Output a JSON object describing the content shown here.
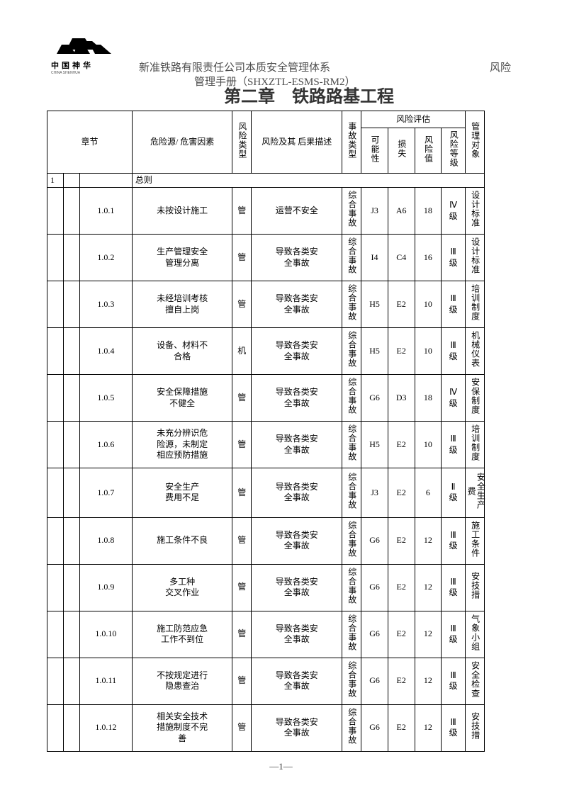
{
  "header": {
    "logo_text": "中国神华",
    "logo_sub": "CHINA SHENHUA",
    "title_line1_left": "新准铁路有限责任公司本质安全管理体系",
    "title_line1_right": "风险",
    "title_line2": "管理手册（SHXZTL-ESMS-RM2）",
    "chapter": "第二章　铁路路基工程"
  },
  "table": {
    "head": {
      "chapter": "章节",
      "hazard": "危险源/\n危害因素",
      "risk_type": "风险类型",
      "risk_desc": "风险及其\n后果描述",
      "accident_type": "事故类型",
      "risk_eval": "风险评估",
      "possibility": "可能性",
      "loss": "损失",
      "risk_value": "风险值",
      "risk_grade": "风险等级",
      "mgmt_obj": "管理对象"
    },
    "section": {
      "num": "1",
      "title": "总则"
    },
    "rows": [
      {
        "ch": "1.0.1",
        "hazard": "未按设计施工",
        "rtype": "管",
        "desc": "运营不安全",
        "atype": "综合事故",
        "poss": "J3",
        "loss": "A6",
        "val": "18",
        "grade": "Ⅳ级",
        "obj": "设计标准"
      },
      {
        "ch": "1.0.2",
        "hazard": "生产管理安全\n管理分离",
        "rtype": "管",
        "desc": "导致各类安\n全事故",
        "atype": "综合事故",
        "poss": "I4",
        "loss": "C4",
        "val": "16",
        "grade": "Ⅲ级",
        "obj": "设计标准"
      },
      {
        "ch": "1.0.3",
        "hazard": "未经培训考核\n擅自上岗",
        "rtype": "管",
        "desc": "导致各类安\n全事故",
        "atype": "综合事故",
        "poss": "H5",
        "loss": "E2",
        "val": "10",
        "grade": "Ⅲ级",
        "obj": "培训制度"
      },
      {
        "ch": "1.0.4",
        "hazard": "设备、材料不\n合格",
        "rtype": "机",
        "desc": "导致各类安\n全事故",
        "atype": "综合事故",
        "poss": "H5",
        "loss": "E2",
        "val": "10",
        "grade": "Ⅲ级",
        "obj": "机械仪表"
      },
      {
        "ch": "1.0.5",
        "hazard": "安全保障措施\n不健全",
        "rtype": "管",
        "desc": "导致各类安\n全事故",
        "atype": "综合事故",
        "poss": "G6",
        "loss": "D3",
        "val": "18",
        "grade": "Ⅳ级",
        "obj": "安保制度"
      },
      {
        "ch": "1.0.6",
        "hazard": "未充分辨识危\n险源，未制定\n相应预防措施",
        "rtype": "管",
        "desc": "导致各类安\n全事故",
        "atype": "综合事故",
        "poss": "H5",
        "loss": "E2",
        "val": "10",
        "grade": "Ⅲ级",
        "obj": "培训制度"
      },
      {
        "ch": "1.0.7",
        "hazard": "安全生产\n费用不足",
        "rtype": "管",
        "desc": "导致各类安\n全事故",
        "atype": "综合事故",
        "poss": "J3",
        "loss": "E2",
        "val": "6",
        "grade": "Ⅱ级",
        "obj": "安全生产费"
      },
      {
        "ch": "1.0.8",
        "hazard": "施工条件不良",
        "rtype": "管",
        "desc": "导致各类安\n全事故",
        "atype": "综合事故",
        "poss": "G6",
        "loss": "E2",
        "val": "12",
        "grade": "Ⅲ级",
        "obj": "施工条件"
      },
      {
        "ch": "1.0.9",
        "hazard": "多工种\n交叉作业",
        "rtype": "管",
        "desc": "导致各类安\n全事故",
        "atype": "综合事故",
        "poss": "G6",
        "loss": "E2",
        "val": "12",
        "grade": "Ⅲ级",
        "obj": "安技措"
      },
      {
        "ch": "1.0.10",
        "hazard": "施工防范应急\n工作不到位",
        "rtype": "管",
        "desc": "导致各类安\n全事故",
        "atype": "综合事故",
        "poss": "G6",
        "loss": "E2",
        "val": "12",
        "grade": "Ⅲ级",
        "obj": "气象小组"
      },
      {
        "ch": "1.0.11",
        "hazard": "不按规定进行\n隐患查治",
        "rtype": "管",
        "desc": "导致各类安\n全事故",
        "atype": "综合事故",
        "poss": "G6",
        "loss": "E2",
        "val": "12",
        "grade": "Ⅲ级",
        "obj": "安全检查"
      },
      {
        "ch": "1.0.12",
        "hazard": "相关安全技术\n措施制度不完\n善",
        "rtype": "管",
        "desc": "导致各类安\n全事故",
        "atype": "综合事故",
        "poss": "G6",
        "loss": "E2",
        "val": "12",
        "grade": "Ⅲ级",
        "obj": "安技措"
      }
    ]
  },
  "page_num": "—1—"
}
